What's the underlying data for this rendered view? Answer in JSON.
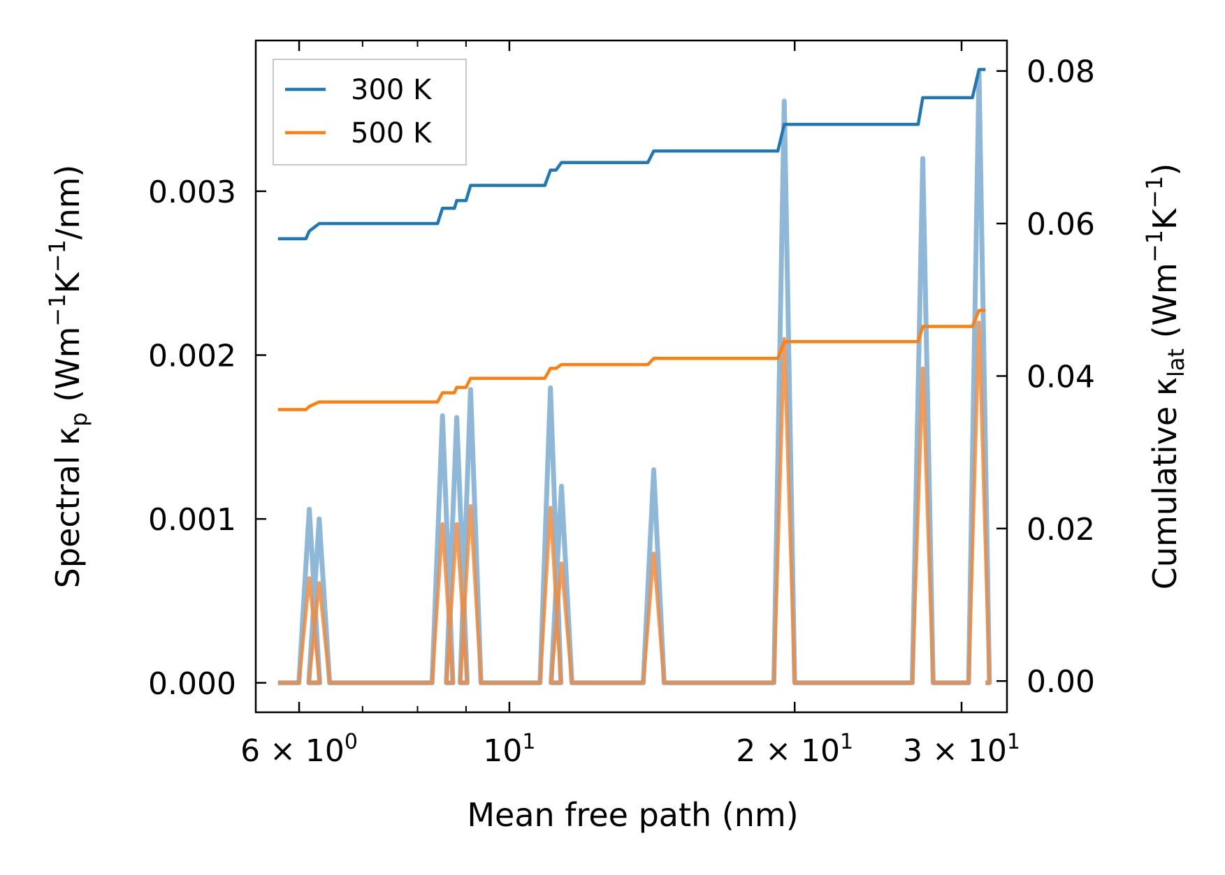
{
  "chart_data": {
    "type": "line",
    "xlabel": "Mean free path (nm)",
    "xscale": "log",
    "xlim": [
      5.4,
      33.5
    ],
    "x_ticks": [
      {
        "value": 6,
        "base": "6",
        "exp": "0"
      },
      {
        "value": 10,
        "base": "10",
        "exp": "1"
      },
      {
        "value": 20,
        "base": "2",
        "exp": "1"
      },
      {
        "value": 30,
        "base": "3",
        "exp": "1"
      }
    ],
    "y_left": {
      "label_parts": [
        "Spectral κ",
        "p",
        " (Wm",
        "−1",
        "K",
        "−1",
        "/nm)"
      ],
      "lim": [
        -0.00018,
        0.00392
      ],
      "ticks": [
        0,
        0.001,
        0.002,
        0.003
      ],
      "tick_labels": [
        "0.000",
        "0.001",
        "0.002",
        "0.003"
      ]
    },
    "y_right": {
      "label_parts": [
        "Cumulative κ",
        "lat",
        " (Wm",
        "−1",
        "K",
        "−1",
        ")"
      ],
      "lim": [
        -0.0041,
        0.084
      ],
      "ticks": [
        0,
        0.02,
        0.04,
        0.06,
        0.08
      ],
      "tick_labels": [
        "0.00",
        "0.02",
        "0.04",
        "0.06",
        "0.08"
      ]
    },
    "x_range": [
      5.7,
      31.8
    ],
    "series": [
      {
        "name": "300 K",
        "color": "#1f77b4",
        "axis": "right",
        "cumulative": [
          [
            5.7,
            0.058
          ],
          [
            6.1,
            0.058
          ],
          [
            6.15,
            0.059
          ],
          [
            6.3,
            0.06
          ],
          [
            8.4,
            0.06
          ],
          [
            8.5,
            0.062
          ],
          [
            8.75,
            0.062
          ],
          [
            8.8,
            0.063
          ],
          [
            9.0,
            0.063
          ],
          [
            9.1,
            0.065
          ],
          [
            10.9,
            0.065
          ],
          [
            11.05,
            0.067
          ],
          [
            11.2,
            0.067
          ],
          [
            11.35,
            0.068
          ],
          [
            14.0,
            0.068
          ],
          [
            14.2,
            0.0695
          ],
          [
            19.2,
            0.0695
          ],
          [
            19.5,
            0.073
          ],
          [
            27.0,
            0.073
          ],
          [
            27.3,
            0.0765
          ],
          [
            30.8,
            0.0765
          ],
          [
            31.3,
            0.0802
          ],
          [
            31.8,
            0.0802
          ]
        ]
      },
      {
        "name": "500 K",
        "color": "#ff7f0e",
        "axis": "right",
        "cumulative": [
          [
            5.7,
            0.0356
          ],
          [
            6.1,
            0.0356
          ],
          [
            6.15,
            0.036
          ],
          [
            6.3,
            0.0366
          ],
          [
            8.4,
            0.0366
          ],
          [
            8.5,
            0.0378
          ],
          [
            8.75,
            0.0378
          ],
          [
            8.8,
            0.0385
          ],
          [
            9.0,
            0.0385
          ],
          [
            9.1,
            0.0397
          ],
          [
            10.9,
            0.0397
          ],
          [
            11.05,
            0.041
          ],
          [
            11.2,
            0.041
          ],
          [
            11.35,
            0.0415
          ],
          [
            14.0,
            0.0415
          ],
          [
            14.2,
            0.0423
          ],
          [
            19.2,
            0.0423
          ],
          [
            19.5,
            0.0445
          ],
          [
            27.0,
            0.0445
          ],
          [
            27.3,
            0.0465
          ],
          [
            30.8,
            0.0465
          ],
          [
            31.3,
            0.0486
          ],
          [
            31.8,
            0.0486
          ]
        ]
      }
    ],
    "spectral_peaks": [
      {
        "x": 6.15,
        "k300": 0.00106,
        "k500": 0.00064
      },
      {
        "x": 6.3,
        "k300": 0.001,
        "k500": 0.00061
      },
      {
        "x": 8.5,
        "k300": 0.00163,
        "k500": 0.00097
      },
      {
        "x": 8.8,
        "k300": 0.00162,
        "k500": 0.00097
      },
      {
        "x": 9.1,
        "k300": 0.00179,
        "k500": 0.00108
      },
      {
        "x": 11.05,
        "k300": 0.0018,
        "k500": 0.00107
      },
      {
        "x": 11.35,
        "k300": 0.0012,
        "k500": 0.00073
      },
      {
        "x": 14.2,
        "k300": 0.0013,
        "k500": 0.00079
      },
      {
        "x": 19.5,
        "k300": 0.00355,
        "k500": 0.0021
      },
      {
        "x": 27.3,
        "k300": 0.0032,
        "k500": 0.00192
      },
      {
        "x": 31.3,
        "k300": 0.00372,
        "k500": 0.0022
      }
    ],
    "spectral_colors": {
      "300 K": "#6a9fca",
      "500 K": "#f28a3a"
    },
    "legend": {
      "position": "top-left",
      "entries": [
        "300 K",
        "500 K"
      ]
    }
  }
}
